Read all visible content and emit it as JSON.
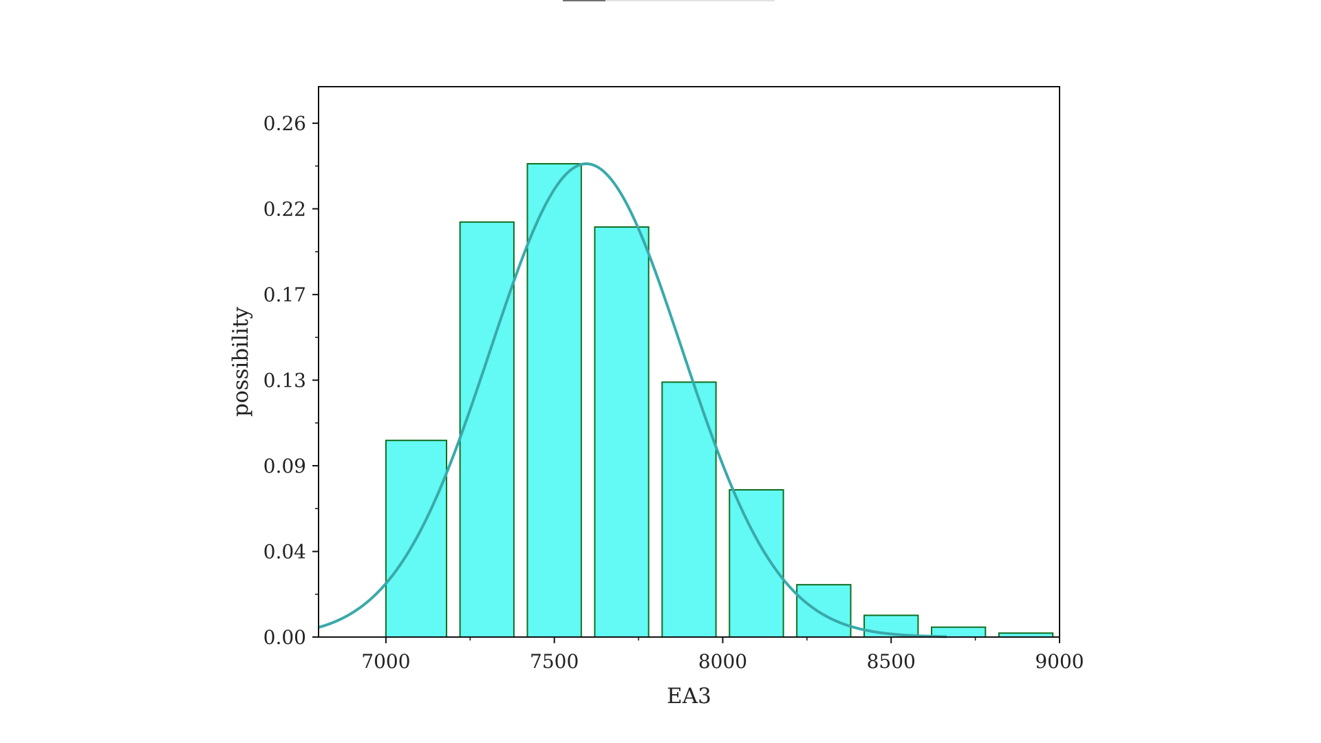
{
  "chart_data": {
    "type": "bar",
    "title": "",
    "xlabel": "EA3",
    "ylabel": "possibility",
    "xlim": [
      6800,
      9000
    ],
    "ylim": [
      0.0,
      0.2785
    ],
    "x_ticks": [
      7000,
      7500,
      8000,
      8500,
      9000
    ],
    "x_tick_labels": [
      "7000",
      "7500",
      "8000",
      "8500",
      "9000"
    ],
    "y_ticks": [
      0.0,
      0.0433,
      0.0867,
      0.13,
      0.1733,
      0.2167,
      0.26
    ],
    "y_tick_labels": [
      "0.00",
      "0.04",
      "0.09",
      "0.13",
      "0.17",
      "0.22",
      "0.26"
    ],
    "grid": false,
    "bars": [
      {
        "x0": 7000,
        "x1": 7180,
        "value": 0.0995
      },
      {
        "x0": 7220,
        "x1": 7380,
        "value": 0.21
      },
      {
        "x0": 7420,
        "x1": 7580,
        "value": 0.2395
      },
      {
        "x0": 7620,
        "x1": 7780,
        "value": 0.2075
      },
      {
        "x0": 7820,
        "x1": 7980,
        "value": 0.129
      },
      {
        "x0": 8020,
        "x1": 8180,
        "value": 0.0745
      },
      {
        "x0": 8220,
        "x1": 8380,
        "value": 0.0265
      },
      {
        "x0": 8420,
        "x1": 8580,
        "value": 0.011
      },
      {
        "x0": 8620,
        "x1": 8780,
        "value": 0.005
      },
      {
        "x0": 8820,
        "x1": 8980,
        "value": 0.002
      }
    ],
    "curve": {
      "type": "normal-density-fit",
      "mean": 7595,
      "std": 285,
      "peak": 0.2395,
      "x_range": [
        6800,
        8665
      ]
    },
    "colors": {
      "bar_fill": "#63f9f4",
      "bar_edge": "#0f6e1f",
      "curve": "#3aa9aa",
      "axis": "#111111"
    }
  }
}
